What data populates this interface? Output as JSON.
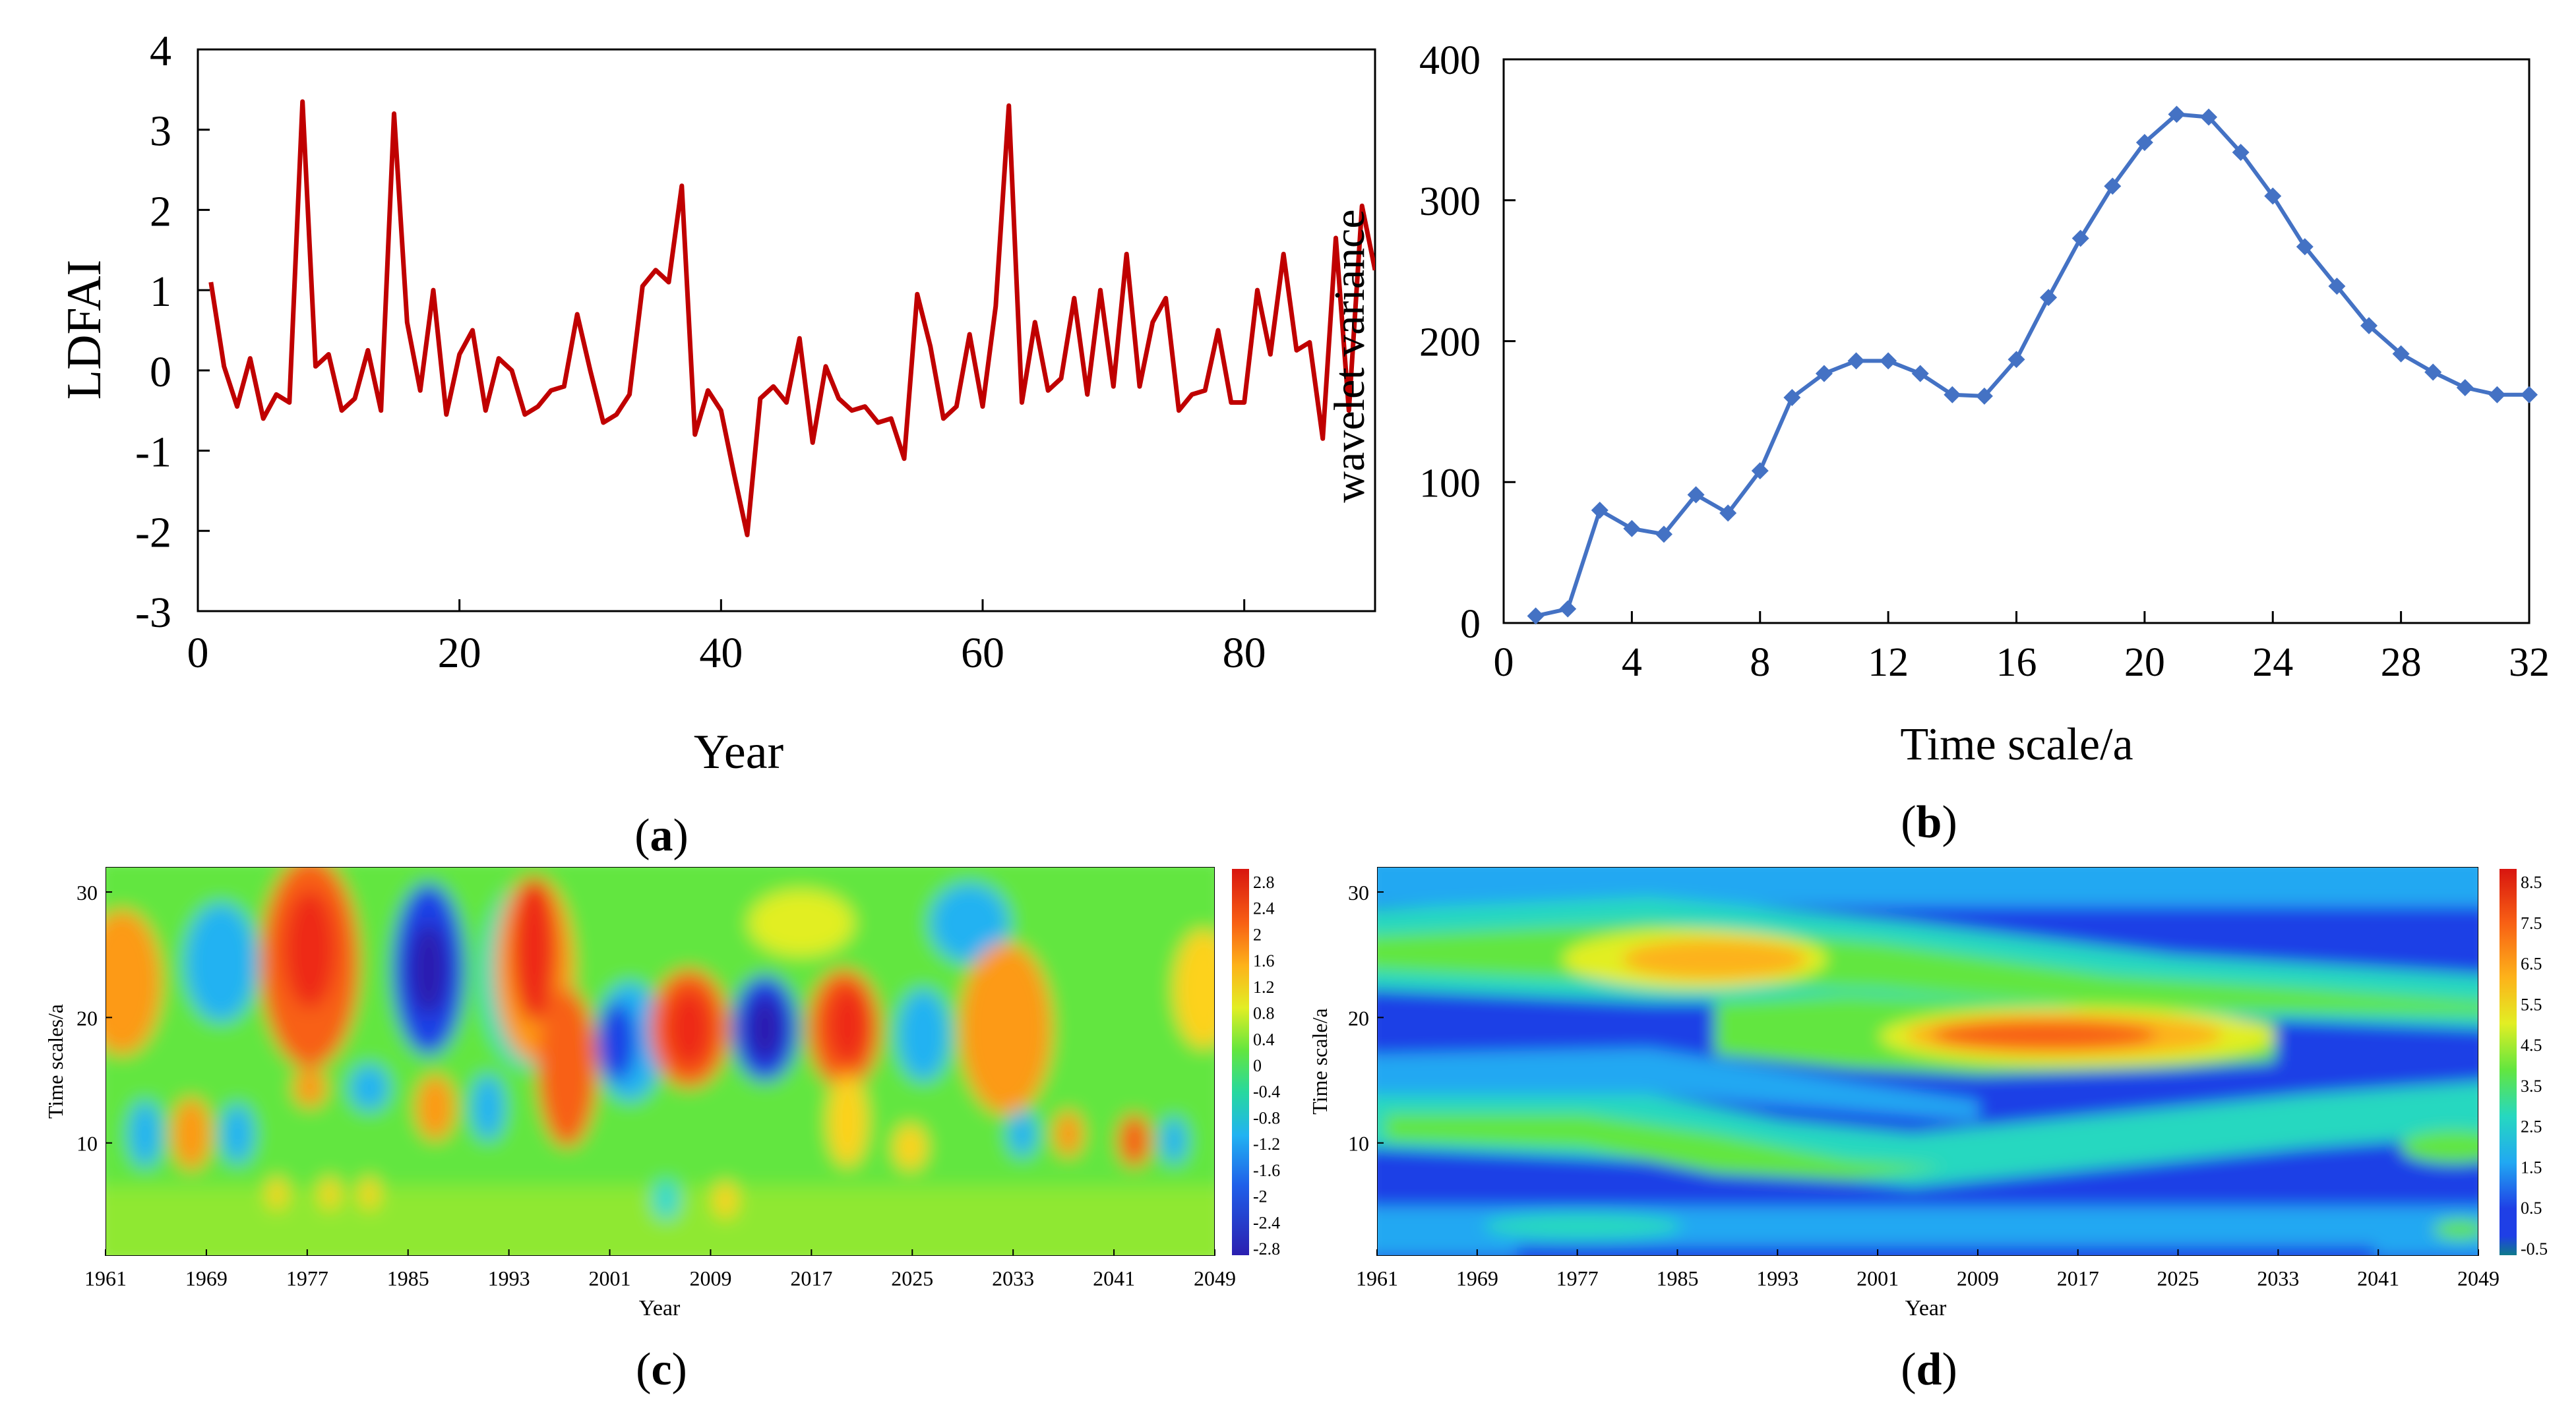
{
  "chart_data": [
    {
      "panel": "a",
      "type": "line",
      "panel_label": "a",
      "xlabel": "Year",
      "ylabel": "LDFAI",
      "xlim": [
        0,
        90
      ],
      "ylim": [
        -3,
        4
      ],
      "xticks": [
        0,
        20,
        40,
        60,
        80
      ],
      "yticks": [
        -3,
        -2,
        -1,
        0,
        1,
        2,
        3,
        4
      ],
      "grid": false,
      "line_color": "#c00000",
      "x": [
        1,
        2,
        3,
        4,
        5,
        6,
        7,
        8,
        9,
        10,
        11,
        12,
        13,
        14,
        15,
        16,
        17,
        18,
        19,
        20,
        21,
        22,
        23,
        24,
        25,
        26,
        27,
        28,
        29,
        30,
        31,
        32,
        33,
        34,
        35,
        36,
        37,
        38,
        39,
        40,
        41,
        42,
        43,
        44,
        45,
        46,
        47,
        48,
        49,
        50,
        51,
        52,
        53,
        54,
        55,
        56,
        57,
        58,
        59,
        60,
        61,
        62,
        63,
        64,
        65,
        66,
        67,
        68,
        69,
        70,
        71,
        72,
        73,
        74,
        75,
        76,
        77,
        78,
        79,
        80,
        81,
        82,
        83,
        84,
        85,
        86,
        87,
        88,
        89,
        90
      ],
      "y": [
        1.1,
        0.05,
        -0.45,
        0.15,
        -0.6,
        -0.3,
        -0.4,
        3.35,
        0.05,
        0.2,
        -0.5,
        -0.35,
        0.25,
        -0.5,
        3.2,
        0.6,
        -0.25,
        1.0,
        -0.55,
        0.2,
        0.5,
        -0.5,
        0.15,
        0.0,
        -0.55,
        -0.45,
        -0.25,
        -0.2,
        0.7,
        0.0,
        -0.65,
        -0.55,
        -0.3,
        1.05,
        1.25,
        1.1,
        2.3,
        -0.8,
        -0.25,
        -0.5,
        -1.3,
        -2.05,
        -0.35,
        -0.2,
        -0.4,
        0.4,
        -0.9,
        0.05,
        -0.35,
        -0.5,
        -0.45,
        -0.65,
        -0.6,
        -1.1,
        0.95,
        0.3,
        -0.6,
        -0.45,
        0.45,
        -0.45,
        0.8,
        3.3,
        -0.4,
        0.6,
        -0.25,
        -0.1,
        0.9,
        -0.3,
        1.0,
        -0.2,
        1.45,
        -0.2,
        0.6,
        0.9,
        -0.5,
        -0.3,
        -0.25,
        0.5,
        -0.4,
        -0.4,
        1.0,
        0.2,
        1.45,
        0.25,
        0.35,
        -0.85,
        1.65,
        -0.5,
        2.05,
        1.25
      ]
    },
    {
      "panel": "b",
      "type": "line",
      "panel_label": "b",
      "xlabel": "Time scale/a",
      "ylabel": "wavelet variance",
      "xlim": [
        0,
        32
      ],
      "ylim": [
        0,
        400
      ],
      "xticks": [
        0,
        4,
        8,
        12,
        16,
        20,
        24,
        28,
        32
      ],
      "yticks": [
        0,
        100,
        200,
        300,
        400
      ],
      "grid": false,
      "line_color": "#4472c4",
      "marker": "diamond",
      "x": [
        1,
        2,
        3,
        4,
        5,
        6,
        7,
        8,
        9,
        10,
        11,
        12,
        13,
        14,
        15,
        16,
        17,
        18,
        19,
        20,
        21,
        22,
        23,
        24,
        25,
        26,
        27,
        28,
        29,
        30,
        31,
        32
      ],
      "y": [
        5,
        10,
        80,
        67,
        63,
        91,
        78,
        108,
        160,
        177,
        186,
        186,
        177,
        162,
        161,
        187,
        231,
        273,
        310,
        341,
        361,
        359,
        334,
        303,
        267,
        239,
        211,
        191,
        178,
        167,
        162,
        162
      ]
    },
    {
      "panel": "c",
      "type": "heatmap",
      "panel_label": "c",
      "xlabel": "Year",
      "ylabel": "Time scales/a",
      "xticks": [
        "1961",
        "1969",
        "1977",
        "1985",
        "1993",
        "2001",
        "2009",
        "2017",
        "2025",
        "2033",
        "2041",
        "2049"
      ],
      "yticks": [
        "10",
        "20",
        "30"
      ],
      "colorbar_labels": [
        "2.8",
        "2.4",
        "2",
        "1.6",
        "1.2",
        "0.8",
        "0.4",
        "0",
        "-0.4",
        "-0.8",
        "-1.2",
        "-1.6",
        "-2",
        "-2.4",
        "-2.8"
      ],
      "vmin": -2.8,
      "vmax": 2.8
    },
    {
      "panel": "d",
      "type": "heatmap",
      "panel_label": "d",
      "xlabel": "Year",
      "ylabel": "Time scale/a",
      "xticks": [
        "1961",
        "1969",
        "1977",
        "1985",
        "1993",
        "2001",
        "2009",
        "2017",
        "2025",
        "2033",
        "2041",
        "2049"
      ],
      "yticks": [
        "10",
        "20",
        "30"
      ],
      "colorbar_labels": [
        "8.5",
        "7.5",
        "6.5",
        "5.5",
        "4.5",
        "3.5",
        "2.5",
        "1.5",
        "0.5",
        "-0.5"
      ],
      "vmin": -0.5,
      "vmax": 9
    }
  ],
  "colorscale": [
    "#2b1fb0",
    "#1f3fe6",
    "#1f78ef",
    "#21b2f2",
    "#26d8d2",
    "#3fe38a",
    "#62e63f",
    "#a8ec2c",
    "#e2ee24",
    "#fdd21e",
    "#fd9a18",
    "#f86014",
    "#ee2a12",
    "#d8150f"
  ]
}
